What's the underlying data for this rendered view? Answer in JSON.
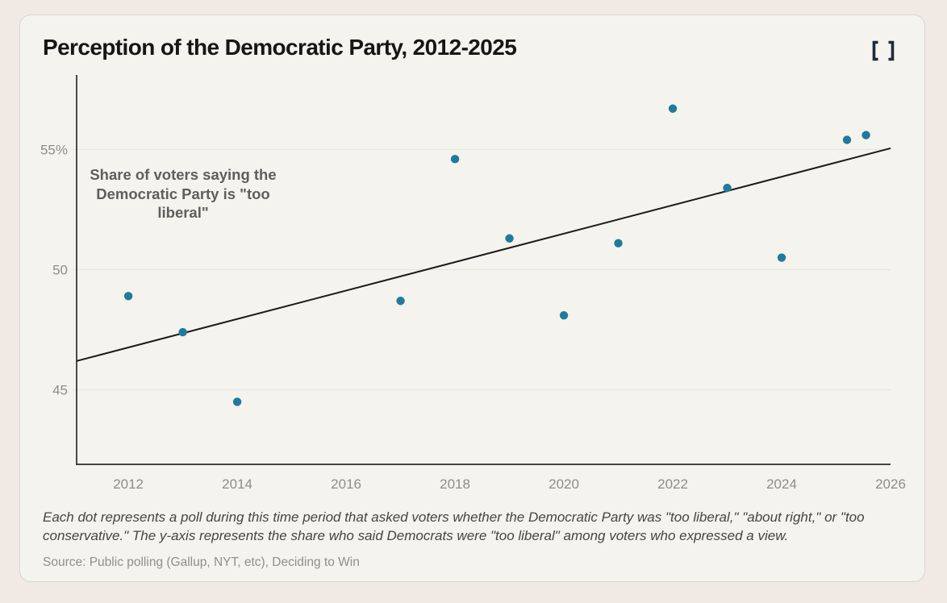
{
  "header": {
    "title": "Perception of the Democratic Party, 2012-2025",
    "expand_icon": "expand-icon"
  },
  "annotation": {
    "lines": [
      "Share of voters saying the",
      "Democratic Party is \"too",
      "liberal\""
    ]
  },
  "caption": {
    "line1": "Each dot represents a poll during this time period that asked voters whether the Democratic Party was \"too liberal,\" \"about right,\" or \"too",
    "line2": "conservative.\" The y-axis represents the share who said Democrats were \"too liberal\" among voters who expressed a view.",
    "source": "Source: Public polling (Gallup, NYT, etc), Deciding to Win"
  },
  "chart_data": {
    "type": "scatter",
    "title": "Perception of the Democratic Party, 2012-2025",
    "xlabel": "",
    "ylabel": "Share of voters saying the Democratic Party is \"too liberal\"",
    "xlim": [
      2011.05,
      2026.0
    ],
    "ylim": [
      41.9,
      58.1
    ],
    "grid": "horizontal",
    "points": [
      {
        "x": 2012,
        "y": 48.9
      },
      {
        "x": 2013,
        "y": 47.4
      },
      {
        "x": 2014,
        "y": 44.5
      },
      {
        "x": 2017,
        "y": 48.7
      },
      {
        "x": 2018,
        "y": 54.6
      },
      {
        "x": 2019,
        "y": 51.3
      },
      {
        "x": 2020,
        "y": 48.1
      },
      {
        "x": 2021,
        "y": 51.1
      },
      {
        "x": 2022,
        "y": 56.7
      },
      {
        "x": 2023,
        "y": 53.4
      },
      {
        "x": 2024,
        "y": 50.5
      },
      {
        "x": 2025.2,
        "y": 55.4
      },
      {
        "x": 2025.55,
        "y": 55.6
      }
    ],
    "trendline": {
      "x1": 2011.05,
      "y1": 46.2,
      "x2": 2026.0,
      "y2": 55.05
    },
    "xticks": [
      2012,
      2014,
      2016,
      2018,
      2020,
      2022,
      2024,
      2026
    ],
    "yticks": [
      {
        "value": 45,
        "label": "45"
      },
      {
        "value": 50,
        "label": "50"
      },
      {
        "value": 55,
        "label": "55%"
      }
    ],
    "colors": {
      "dot": "#207a9c",
      "trend": "#1b1b1b",
      "axis": "#2b2b2b",
      "grid": "#e7e6e0",
      "tick_label": "#8d8d8d"
    }
  }
}
